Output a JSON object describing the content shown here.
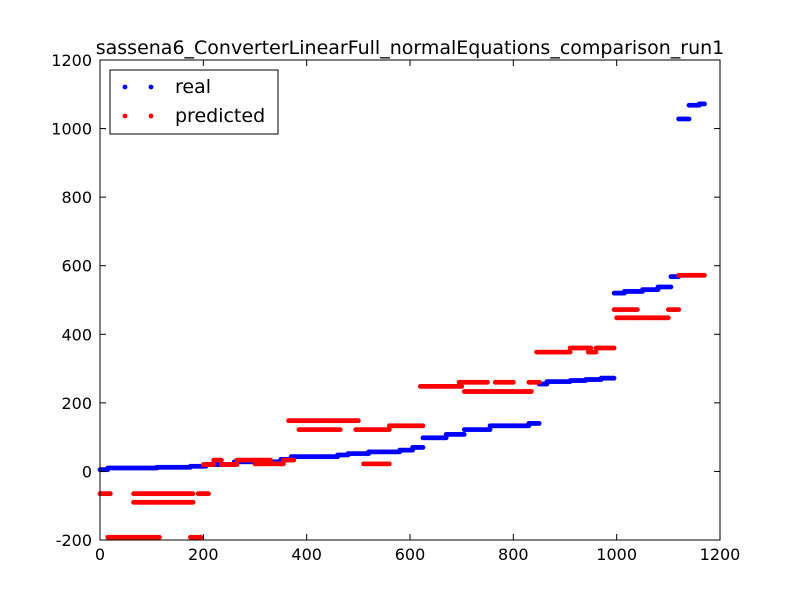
{
  "chart_data": {
    "type": "scatter",
    "title": "sassena6_ConverterLinearFull_normalEquations_comparison_run1",
    "xlabel": "",
    "ylabel": "",
    "xlim": [
      0,
      1200
    ],
    "ylim": [
      -200,
      1200
    ],
    "x_ticks": [
      0,
      200,
      400,
      600,
      800,
      1000,
      1200
    ],
    "y_ticks": [
      -200,
      0,
      200,
      400,
      600,
      800,
      1000,
      1200
    ],
    "grid": false,
    "legend_position": "top-left",
    "series": [
      {
        "name": "real",
        "color": "#0000ff",
        "segments": [
          {
            "x": [
              0,
              15
            ],
            "y": 5
          },
          {
            "x": [
              15,
              110
            ],
            "y": 10
          },
          {
            "x": [
              110,
              175
            ],
            "y": 12
          },
          {
            "x": [
              175,
              205
            ],
            "y": 15
          },
          {
            "x": [
              205,
              260
            ],
            "y": 20
          },
          {
            "x": [
              260,
              350
            ],
            "y": 28
          },
          {
            "x": [
              350,
              370
            ],
            "y": 35
          },
          {
            "x": [
              370,
              460
            ],
            "y": 43
          },
          {
            "x": [
              460,
              480
            ],
            "y": 48
          },
          {
            "x": [
              480,
              520
            ],
            "y": 52
          },
          {
            "x": [
              520,
              580
            ],
            "y": 57
          },
          {
            "x": [
              580,
              605
            ],
            "y": 62
          },
          {
            "x": [
              605,
              625
            ],
            "y": 70
          },
          {
            "x": [
              625,
              670
            ],
            "y": 98
          },
          {
            "x": [
              670,
              705
            ],
            "y": 108
          },
          {
            "x": [
              705,
              755
            ],
            "y": 122
          },
          {
            "x": [
              755,
              830
            ],
            "y": 133
          },
          {
            "x": [
              830,
              850
            ],
            "y": 140
          },
          {
            "x": [
              850,
              865
            ],
            "y": 255
          },
          {
            "x": [
              865,
              910
            ],
            "y": 262
          },
          {
            "x": [
              910,
              940
            ],
            "y": 265
          },
          {
            "x": [
              940,
              970
            ],
            "y": 268
          },
          {
            "x": [
              970,
              995
            ],
            "y": 272
          },
          {
            "x": [
              995,
              1015
            ],
            "y": 520
          },
          {
            "x": [
              1015,
              1050
            ],
            "y": 525
          },
          {
            "x": [
              1050,
              1080
            ],
            "y": 530
          },
          {
            "x": [
              1080,
              1105
            ],
            "y": 538
          },
          {
            "x": [
              1105,
              1120
            ],
            "y": 568
          },
          {
            "x": [
              1120,
              1140
            ],
            "y": 1028
          },
          {
            "x": [
              1140,
              1160
            ],
            "y": 1068
          },
          {
            "x": [
              1160,
              1170
            ],
            "y": 1072
          }
        ]
      },
      {
        "name": "predicted",
        "color": "#ff0000",
        "segments": [
          {
            "x": [
              0,
              20
            ],
            "y": -65
          },
          {
            "x": [
              15,
              115
            ],
            "y": -192
          },
          {
            "x": [
              65,
              180
            ],
            "y": -65
          },
          {
            "x": [
              65,
              180
            ],
            "y": -90
          },
          {
            "x": [
              175,
              195
            ],
            "y": -192
          },
          {
            "x": [
              190,
              210
            ],
            "y": -65
          },
          {
            "x": [
              200,
              220
            ],
            "y": 20
          },
          {
            "x": [
              220,
              235
            ],
            "y": 33
          },
          {
            "x": [
              235,
              265
            ],
            "y": 20
          },
          {
            "x": [
              265,
              330
            ],
            "y": 33
          },
          {
            "x": [
              300,
              355
            ],
            "y": 22
          },
          {
            "x": [
              355,
              375
            ],
            "y": 33
          },
          {
            "x": [
              365,
              500
            ],
            "y": 148
          },
          {
            "x": [
              385,
              465
            ],
            "y": 122
          },
          {
            "x": [
              495,
              560
            ],
            "y": 122
          },
          {
            "x": [
              510,
              560
            ],
            "y": 22
          },
          {
            "x": [
              560,
              625
            ],
            "y": 133
          },
          {
            "x": [
              620,
              700
            ],
            "y": 248
          },
          {
            "x": [
              695,
              750
            ],
            "y": 260
          },
          {
            "x": [
              705,
              835
            ],
            "y": 233
          },
          {
            "x": [
              765,
              800
            ],
            "y": 260
          },
          {
            "x": [
              830,
              850
            ],
            "y": 260
          },
          {
            "x": [
              845,
              910
            ],
            "y": 348
          },
          {
            "x": [
              910,
              950
            ],
            "y": 360
          },
          {
            "x": [
              945,
              960
            ],
            "y": 348
          },
          {
            "x": [
              960,
              995
            ],
            "y": 360
          },
          {
            "x": [
              995,
              1040
            ],
            "y": 472
          },
          {
            "x": [
              1000,
              1100
            ],
            "y": 448
          },
          {
            "x": [
              1100,
              1120
            ],
            "y": 472
          },
          {
            "x": [
              1120,
              1170
            ],
            "y": 572
          }
        ]
      }
    ]
  }
}
